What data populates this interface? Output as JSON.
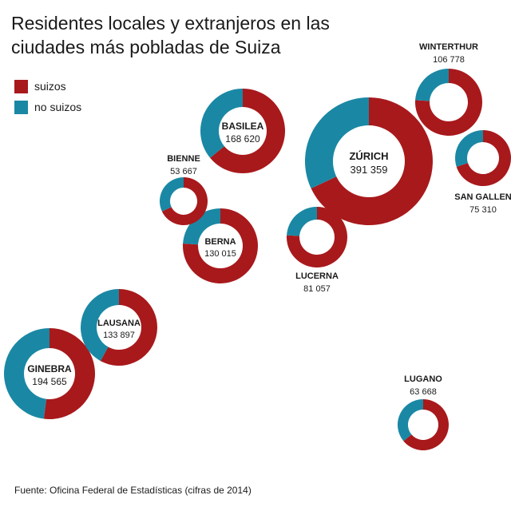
{
  "title": "Residentes locales y extranjeros en las ciudades más pobladas de Suiza",
  "source": "Fuente: Oficina Federal de Estadísticas (cifras de 2014)",
  "colors": {
    "suizos": "#a8191c",
    "no_suizos": "#1a88a4"
  },
  "chart_data": {
    "type": "donut-map",
    "title": "Residentes locales y extranjeros en las ciudades más pobladas de Suiza",
    "legend": [
      {
        "key": "suizos",
        "label": "suizos"
      },
      {
        "key": "no_suizos",
        "label": "no suizos"
      }
    ],
    "series": [
      {
        "city": "ZÚRICH",
        "population": "391 359",
        "share_no_suizos": 0.32
      },
      {
        "city": "GINEBRA",
        "population": "194 565",
        "share_no_suizos": 0.48
      },
      {
        "city": "BASILEA",
        "population": "168 620",
        "share_no_suizos": 0.36
      },
      {
        "city": "LAUSANA",
        "population": "133 897",
        "share_no_suizos": 0.42
      },
      {
        "city": "BERNA",
        "population": "130 015",
        "share_no_suizos": 0.24
      },
      {
        "city": "WINTERTHUR",
        "population": "106 778",
        "share_no_suizos": 0.24
      },
      {
        "city": "LUCERNA",
        "population": "81 057",
        "share_no_suizos": 0.24
      },
      {
        "city": "SAN GALLEN",
        "population": "75 310",
        "share_no_suizos": 0.3
      },
      {
        "city": "BIENNE",
        "population": "53 667",
        "share_no_suizos": 0.32
      },
      {
        "city": "LUGANO",
        "population": "63 668",
        "share_no_suizos": 0.36
      }
    ]
  }
}
